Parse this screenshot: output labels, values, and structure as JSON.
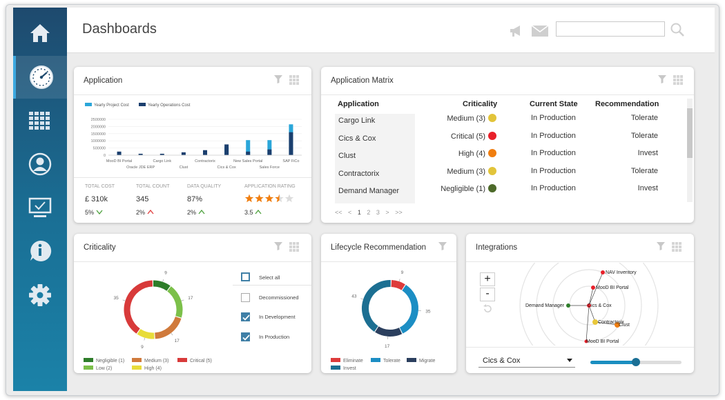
{
  "header": {
    "title": "Dashboards",
    "search": {
      "placeholder": "",
      "value": ""
    }
  },
  "sidebar": {
    "items": [
      {
        "name": "home",
        "icon": "home-icon"
      },
      {
        "name": "dashboards",
        "icon": "gauge-icon",
        "active": true
      },
      {
        "name": "grid",
        "icon": "grid-icon"
      },
      {
        "name": "user",
        "icon": "user-icon"
      },
      {
        "name": "monitor",
        "icon": "monitor-icon"
      },
      {
        "name": "info",
        "icon": "info-icon"
      },
      {
        "name": "settings",
        "icon": "gear-icon"
      }
    ]
  },
  "colors": {
    "accent": "#1a7fae",
    "sidebar_top": "#1e4a6e",
    "series1": "#2aa6d9",
    "series2": "#1b3f6e",
    "critical": "#e23b3b",
    "high": "#f07e10",
    "medium": "#e2c43a",
    "negligible": "#4d6a2a"
  },
  "application": {
    "title": "Application",
    "chart_data": {
      "type": "bar",
      "categories": [
        "MooD BI Portal",
        "Oracle JDE ERP",
        "Cargo Link",
        "Clust",
        "Contractorix",
        "Cics & Cox",
        "New Sales Portal",
        "Sales Force",
        "SAP FiCo"
      ],
      "series": [
        {
          "name": "Yearly Project Cost",
          "values": [
            200000,
            0,
            0,
            0,
            0,
            550000,
            1050000,
            1050000,
            2150000
          ]
        },
        {
          "name": "Yearly Operations Cost",
          "values": [
            250000,
            100000,
            100000,
            200000,
            350000,
            750000,
            250000,
            400000,
            1600000
          ]
        }
      ],
      "y_ticks": [
        "2500000",
        "2000000",
        "1500000",
        "1000000",
        "500000",
        "0"
      ],
      "ylim": [
        0,
        2500000
      ]
    },
    "kpis": [
      {
        "label": "TOTAL COST",
        "value": "£ 310k",
        "change": "5%",
        "trend": "down"
      },
      {
        "label": "TOTAL COUNT",
        "value": "345",
        "change": "2%",
        "trend": "up-red"
      },
      {
        "label": "DATA QUALITY",
        "value": "87%",
        "change": "2%",
        "trend": "up"
      },
      {
        "label": "APPLICATION RATING",
        "rating": 3.5,
        "change": "3.5",
        "trend": "up"
      }
    ]
  },
  "matrix": {
    "title": "Application Matrix",
    "columns": [
      "Application",
      "Criticality",
      "Current State",
      "Recommendation"
    ],
    "rows": [
      {
        "app": "Cargo Link",
        "crit": "Medium (3)",
        "color": "#e2c43a",
        "state": "In Production",
        "rec": "Tolerate"
      },
      {
        "app": "Cics & Cox",
        "crit": "Critical (5)",
        "color": "#e8202a",
        "state": "In Production",
        "rec": "Tolerate"
      },
      {
        "app": "Clust",
        "crit": "High (4)",
        "color": "#f07e10",
        "state": "In Production",
        "rec": "Invest"
      },
      {
        "app": "Contractorix",
        "crit": "Medium (3)",
        "color": "#e2c43a",
        "state": "In Production",
        "rec": "Tolerate"
      },
      {
        "app": "Demand Manager",
        "crit": "Negligible (1)",
        "color": "#4d6a2a",
        "state": "In Production",
        "rec": "Invest"
      }
    ],
    "pager": {
      "first": "<<",
      "prev": "<",
      "pages": [
        "1",
        "2",
        "3"
      ],
      "next": ">",
      "last": ">>"
    }
  },
  "criticality": {
    "title": "Criticality",
    "chart_data": {
      "type": "pie",
      "slices": [
        {
          "label": "Negligible (1)",
          "value": 9,
          "color": "#2e7d2a"
        },
        {
          "label": "Low (2)",
          "value": 17,
          "color": "#7cc04a"
        },
        {
          "label": "Medium (3)",
          "value": 17,
          "color": "#d07a3c"
        },
        {
          "label": "High (4)",
          "value": 9,
          "color": "#e8dc3a"
        },
        {
          "label": "Critical (5)",
          "value": 35,
          "color": "#d83a3a"
        }
      ]
    },
    "filters": [
      {
        "label": "Select all",
        "checked": false
      },
      {
        "label": "Decommissioned",
        "checked": false
      },
      {
        "label": "In Development",
        "checked": true
      },
      {
        "label": "In Production",
        "checked": true
      }
    ]
  },
  "lifecycle": {
    "title": "Lifecycle Recommendation",
    "chart_data": {
      "type": "pie",
      "slices": [
        {
          "label": "Eliminate",
          "value": 9,
          "color": "#dd3b3b"
        },
        {
          "label": "Tolerate",
          "value": 35,
          "color": "#1c8ec4"
        },
        {
          "label": "Migrate",
          "value": 17,
          "color": "#2b3f5e"
        },
        {
          "label": "Invest",
          "value": 43,
          "color": "#1c6f92"
        }
      ]
    },
    "legend": [
      "Eliminate",
      "Tolerate",
      "Migrate",
      "Invest"
    ]
  },
  "integrations": {
    "title": "Integrations",
    "nodes": [
      "NAV Inventory",
      "MooD BI Portal",
      "Demand Manager",
      "Cics & Cox",
      "Contractorix",
      "Clust",
      "MooD BI Portal"
    ],
    "zoom_in": "+",
    "zoom_out": "-",
    "selected": "Cics & Cox",
    "slider_value": 0.5
  }
}
